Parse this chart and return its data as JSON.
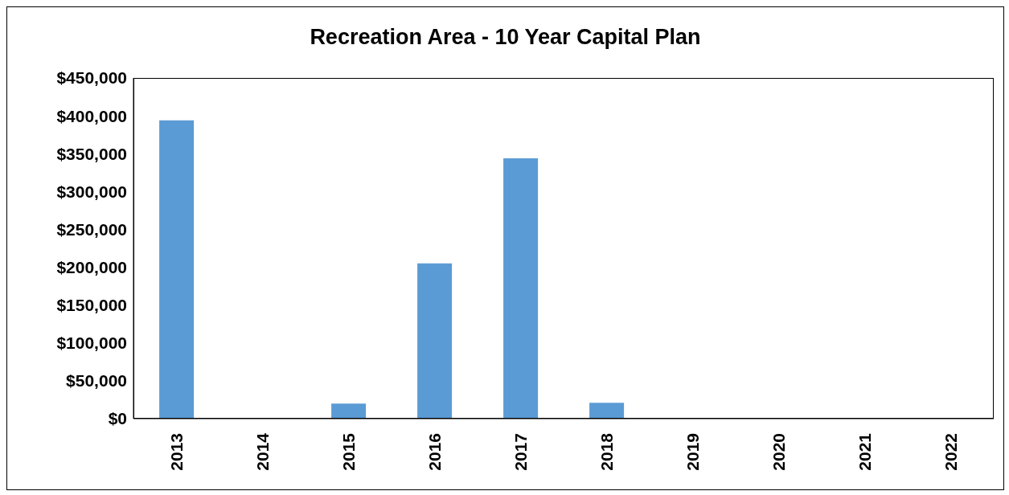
{
  "chart_data": {
    "type": "bar",
    "title": "Recreation Area - 10 Year Capital Plan",
    "categories": [
      "2013",
      "2014",
      "2015",
      "2016",
      "2017",
      "2018",
      "2019",
      "2020",
      "2021",
      "2022"
    ],
    "values": [
      394000,
      0,
      20000,
      205000,
      344000,
      21000,
      0,
      0,
      0,
      0
    ],
    "color": "#5b9bd5",
    "ylim": [
      0,
      450000
    ],
    "yticks": [
      {
        "value": 0,
        "label": "$0"
      },
      {
        "value": 50000,
        "label": "$50,000"
      },
      {
        "value": 100000,
        "label": "$100,000"
      },
      {
        "value": 150000,
        "label": "$150,000"
      },
      {
        "value": 200000,
        "label": "$200,000"
      },
      {
        "value": 250000,
        "label": "$250,000"
      },
      {
        "value": 300000,
        "label": "$300,000"
      },
      {
        "value": 350000,
        "label": "$350,000"
      },
      {
        "value": 400000,
        "label": "$400,000"
      },
      {
        "value": 450000,
        "label": "$450,000"
      }
    ],
    "grid": false
  }
}
